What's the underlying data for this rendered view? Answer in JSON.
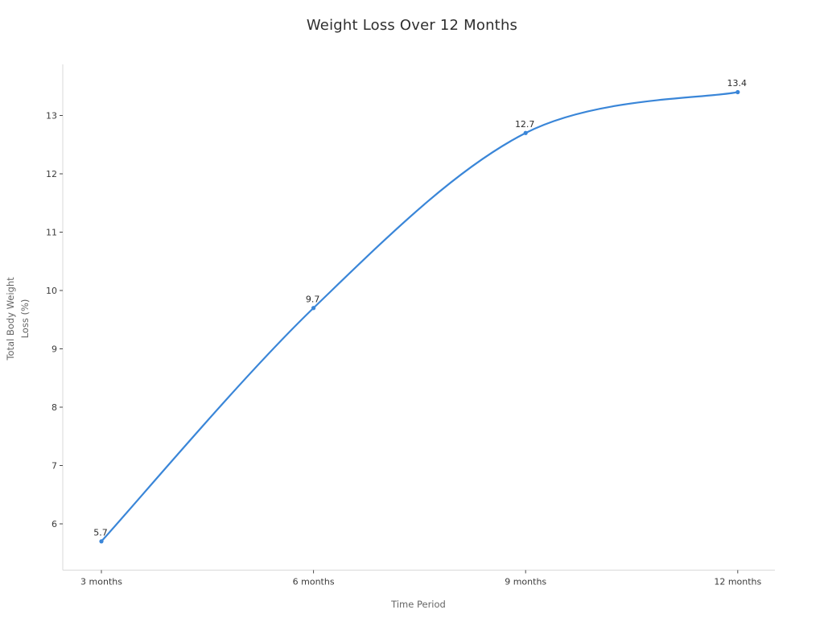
{
  "title": "Weight Loss Over 12 Months",
  "chart_data": {
    "type": "line",
    "title": "Weight Loss Over 12 Months",
    "categories": [
      "3 months",
      "6 months",
      "9 months",
      "12 months"
    ],
    "values": [
      5.7,
      9.7,
      12.7,
      13.4
    ],
    "point_labels": [
      "5.7",
      "9.7",
      "12.7",
      "13.4"
    ],
    "xlabel": "Time Period",
    "ylabel": "Total Body Weight\nLoss (%)",
    "yticks": [
      6,
      7,
      8,
      9,
      10,
      11,
      12,
      13
    ],
    "ylim": [
      5.21,
      13.88
    ],
    "grid": false,
    "legend": "none",
    "line_shape": "spline",
    "colors": {
      "line": "#3a86d8",
      "marker": "#3a86d8",
      "title_text": "#2f2f2f",
      "tick_text": "#3b3b3b",
      "axis_label_text": "#666666",
      "spine": "#d9d9d9",
      "tick_mark": "#4a4a4a",
      "background": "#ffffff"
    }
  }
}
